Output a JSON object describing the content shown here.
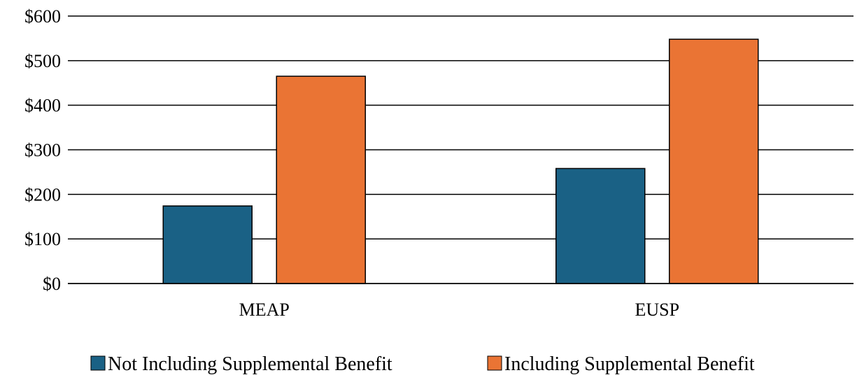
{
  "chart_data": {
    "type": "bar",
    "categories": [
      "MEAP",
      "EUSP"
    ],
    "series": [
      {
        "name": "Not Including Supplemental Benefit",
        "values": [
          174,
          258
        ],
        "color": "#1A6185"
      },
      {
        "name": "Including Supplemental Benefit",
        "values": [
          465,
          548
        ],
        "color": "#EA7434"
      }
    ],
    "ylim": [
      0,
      600
    ],
    "yticks": [
      0,
      100,
      200,
      300,
      400,
      500,
      600
    ],
    "ytick_labels": [
      "$0",
      "$100",
      "$200",
      "$300",
      "$400",
      "$500",
      "$600"
    ],
    "grid": true,
    "legend": "bottom"
  }
}
